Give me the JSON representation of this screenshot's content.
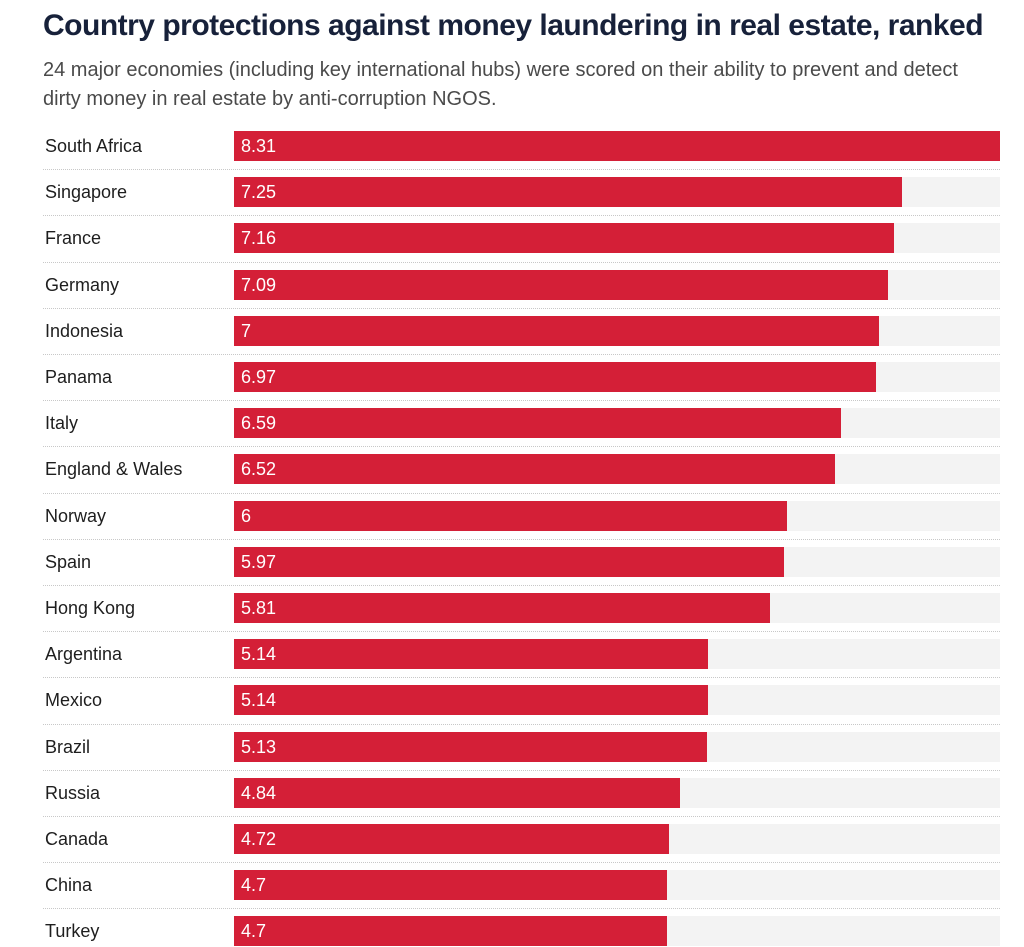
{
  "chart_data": {
    "type": "bar",
    "orientation": "horizontal",
    "title": "Country protections against money laundering in real estate, ranked",
    "subtitle": "24 major economies (including key international hubs) were scored on their ability to prevent and detect dirty money in real estate by anti-corruption NGOS.",
    "xlim": [
      0,
      8.31
    ],
    "grid": false,
    "bar_color": "#d41f37",
    "track_color": "#f3f3f3",
    "categories": [
      "South Africa",
      "Singapore",
      "France",
      "Germany",
      "Indonesia",
      "Panama",
      "Italy",
      "England & Wales",
      "Norway",
      "Spain",
      "Hong Kong",
      "Argentina",
      "Mexico",
      "Brazil",
      "Russia",
      "Canada",
      "China",
      "Turkey"
    ],
    "values": [
      8.31,
      7.25,
      7.16,
      7.09,
      7,
      6.97,
      6.59,
      6.52,
      6,
      5.97,
      5.81,
      5.14,
      5.14,
      5.13,
      4.84,
      4.72,
      4.7,
      4.7
    ],
    "value_labels": [
      "8.31",
      "7.25",
      "7.16",
      "7.09",
      "7",
      "6.97",
      "6.59",
      "6.52",
      "6",
      "5.97",
      "5.81",
      "5.14",
      "5.14",
      "5.13",
      "4.84",
      "4.72",
      "4.7",
      "4.7"
    ]
  }
}
